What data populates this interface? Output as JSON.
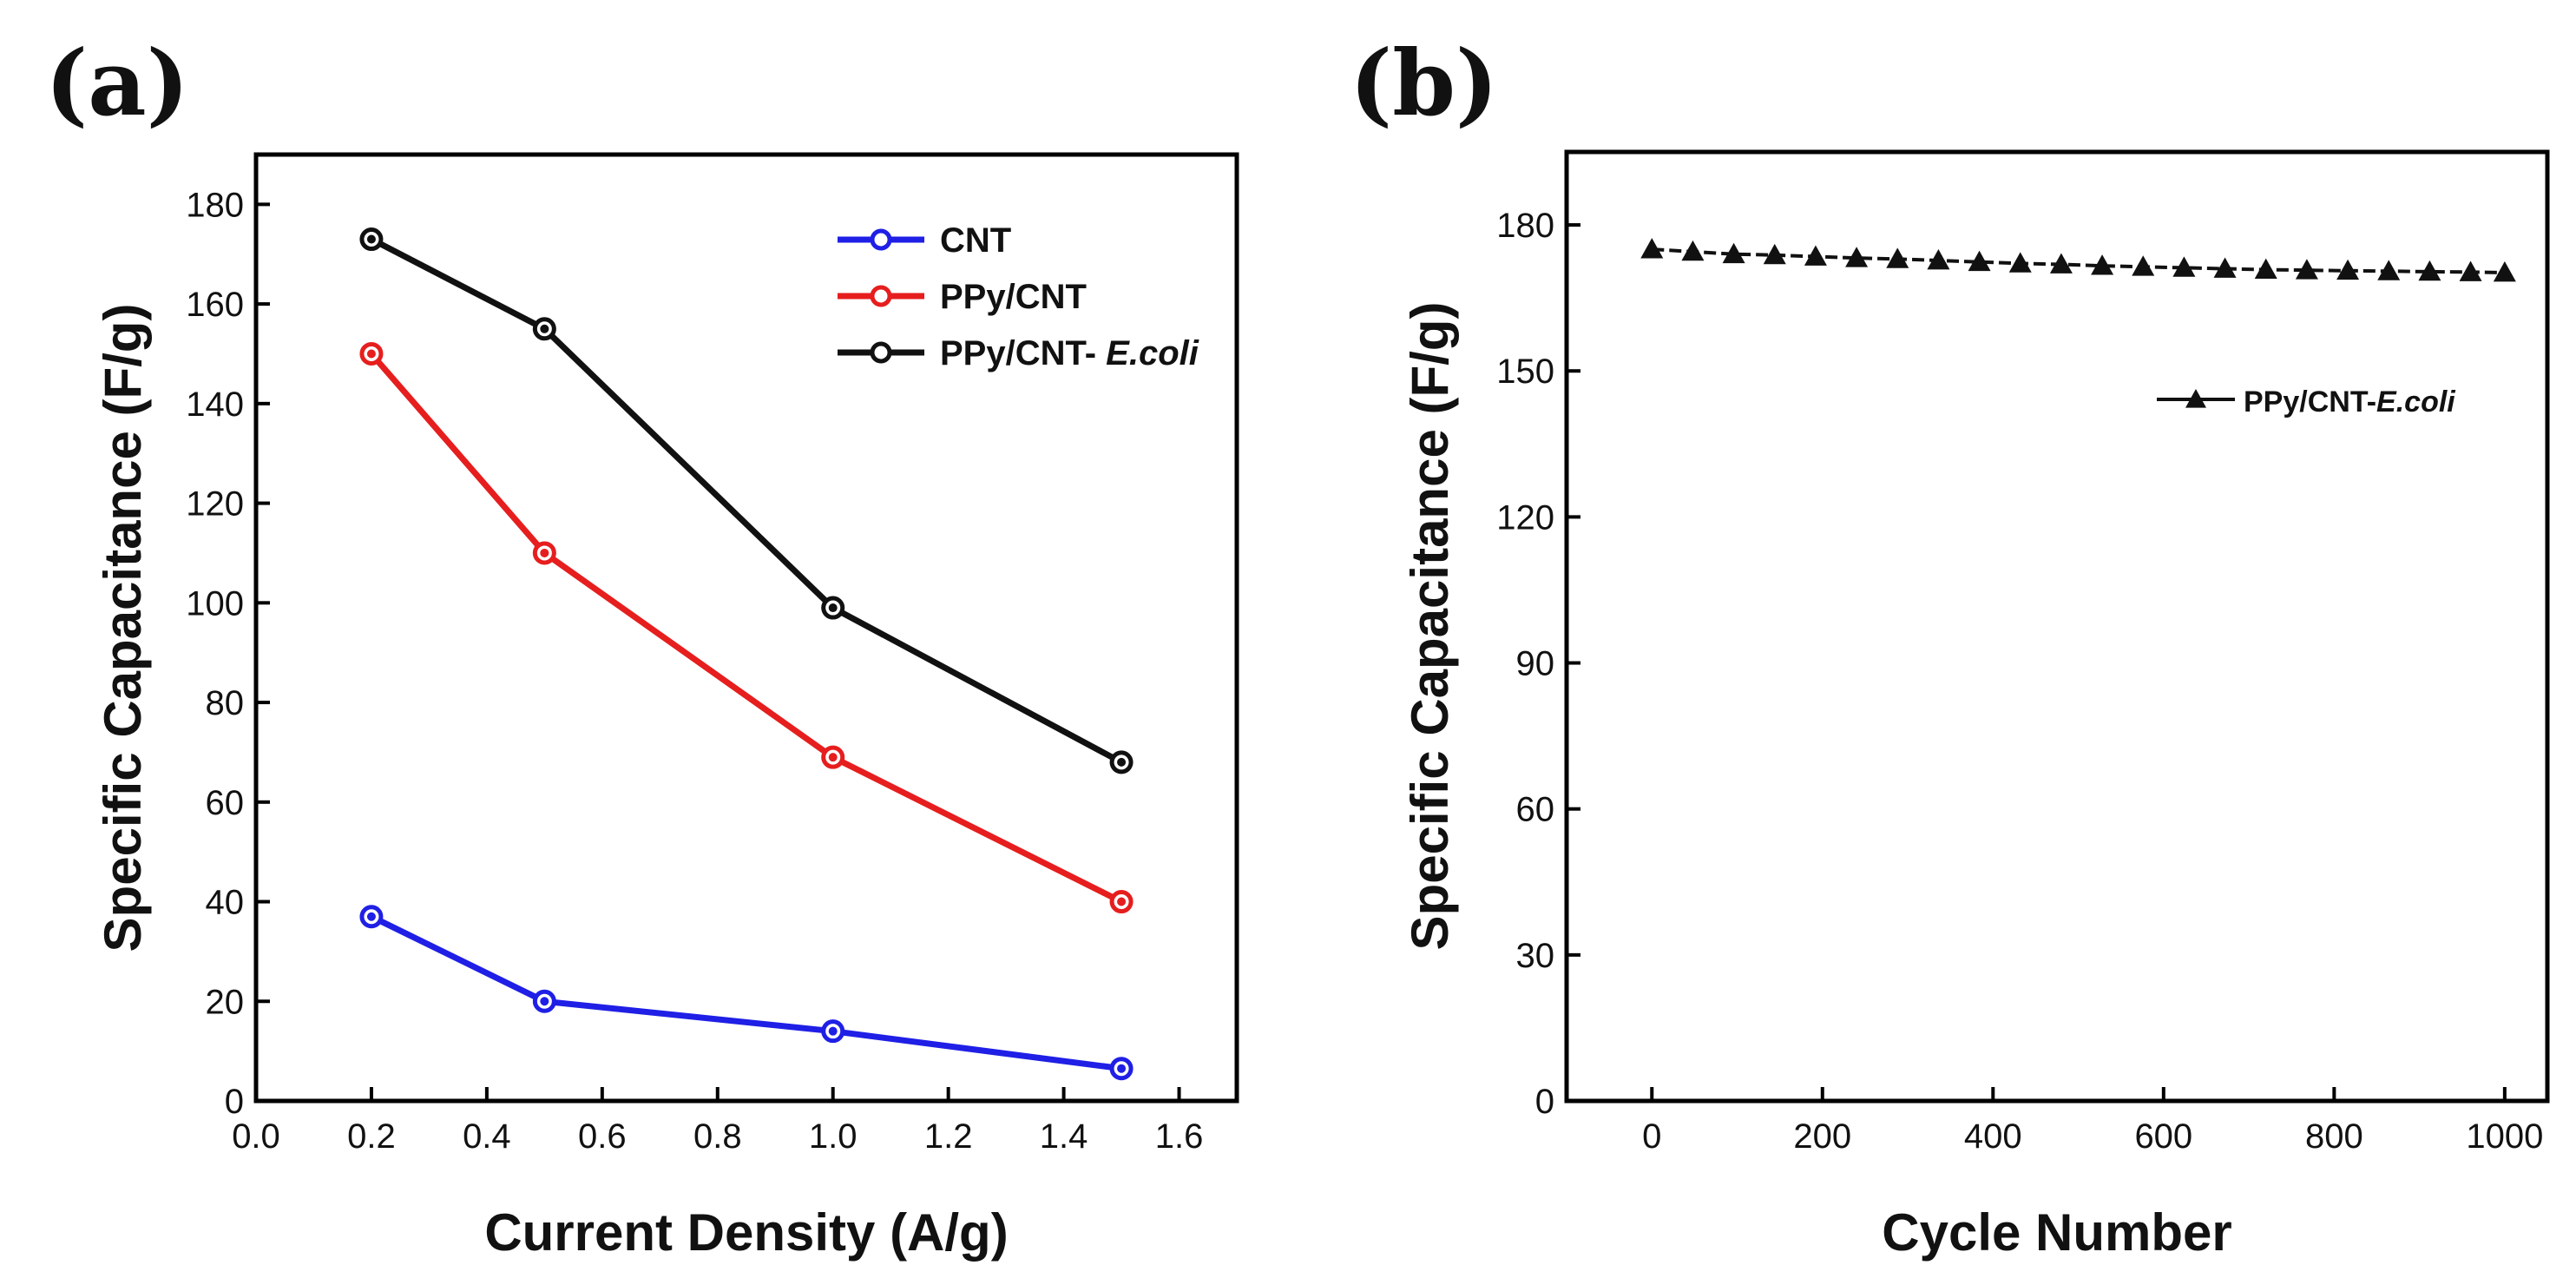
{
  "chart_data": [
    {
      "type": "line",
      "panel_label": "(a)",
      "title": "",
      "xlabel": "Current Density (A/g)",
      "ylabel": "Specific Capacitance (F/g)",
      "xlim": [
        0.0,
        1.7
      ],
      "ylim": [
        0,
        190
      ],
      "xticks": [
        "0.0",
        "0.2",
        "0.4",
        "0.6",
        "0.8",
        "1.0",
        "1.2",
        "1.4",
        "1.6"
      ],
      "yticks": [
        "0",
        "20",
        "40",
        "60",
        "80",
        "100",
        "120",
        "140",
        "160",
        "180"
      ],
      "grid": false,
      "legend_position": "top-right",
      "x": [
        0.2,
        0.5,
        1.0,
        1.5
      ],
      "series": [
        {
          "name": "CNT",
          "values": [
            37,
            20,
            14,
            6.5
          ],
          "color": "#1f1fe6"
        },
        {
          "name": "PPy/CNT",
          "values": [
            150,
            110,
            69,
            40
          ],
          "color": "#e61e1e"
        },
        {
          "name": "PPy/CNT- ",
          "name_italic": "E.coli",
          "values": [
            173,
            155,
            99,
            68
          ],
          "color": "#111111"
        }
      ]
    },
    {
      "type": "line",
      "panel_label": "(b)",
      "title": "",
      "xlabel": "Cycle Number",
      "ylabel": "Specific Capacitance (F/g)",
      "xlim": [
        -100,
        1050
      ],
      "ylim": [
        0,
        195
      ],
      "xticks": [
        "0",
        "200",
        "400",
        "600",
        "800",
        "1000"
      ],
      "yticks": [
        "0",
        "30",
        "60",
        "90",
        "120",
        "150",
        "180"
      ],
      "grid": false,
      "legend_position": "upper-right",
      "x": [
        0,
        48,
        96,
        144,
        192,
        240,
        288,
        336,
        384,
        432,
        480,
        528,
        576,
        624,
        672,
        720,
        768,
        816,
        864,
        912,
        960,
        1000
      ],
      "series": [
        {
          "name": "PPy/CNT-",
          "name_italic": "E.coli",
          "values": [
            175,
            174.5,
            174,
            173.8,
            173.5,
            173.2,
            173,
            172.7,
            172.4,
            172.1,
            171.9,
            171.6,
            171.4,
            171.2,
            171,
            170.8,
            170.7,
            170.6,
            170.5,
            170.4,
            170.3,
            170.2
          ],
          "color": "#111111",
          "marker": "triangle"
        }
      ]
    }
  ]
}
